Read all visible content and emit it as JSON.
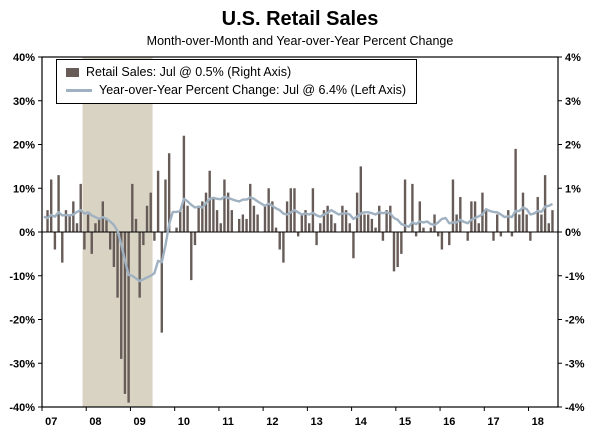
{
  "title": "U.S. Retail Sales",
  "subtitle": "Month-over-Month and Year-over-Year Percent Change",
  "legend": {
    "bars_label": "Retail Sales: Jul @ 0.5% (Right Axis)",
    "line_label": "Year-over-Year Percent Change: Jul @ 6.4% (Left Axis)"
  },
  "colors": {
    "bar": "#675c58",
    "line": "#a0b1c1",
    "recession_band": "#d9d3c3",
    "axis": "#000000",
    "background": "#ffffff"
  },
  "chart_data": {
    "type": "bar",
    "combo": true,
    "x_start": "2007-01",
    "frequency": "monthly",
    "x_domain_months": 140,
    "x_tick_labels": [
      "07",
      "08",
      "09",
      "10",
      "11",
      "12",
      "13",
      "14",
      "15",
      "16",
      "17",
      "18"
    ],
    "left_axis": {
      "range": [
        -40,
        40
      ],
      "tick_step": 10,
      "tick_format": "percent"
    },
    "right_axis": {
      "range": [
        -4,
        4
      ],
      "tick_step": 1,
      "tick_format": "percent"
    },
    "right_to_left_scale": 10,
    "grid": false,
    "legend_position": "top-left-inside",
    "recession_band": {
      "start": "2007-12",
      "end": "2009-06",
      "start_index": 11,
      "end_index": 29
    },
    "series": [
      {
        "name": "Retail Sales: Jul @ 0.5% (Right Axis)",
        "kind": "bar",
        "axis": "right",
        "latest_label": "Jul @ 0.5%",
        "values": [
          0.0,
          0.5,
          1.2,
          -0.4,
          1.3,
          -0.7,
          0.5,
          0.4,
          0.7,
          0.2,
          1.1,
          -0.4,
          0.4,
          -0.5,
          0.2,
          0.3,
          0.7,
          0.3,
          -0.4,
          -0.8,
          -1.5,
          -2.9,
          -3.7,
          -3.9,
          1.1,
          0.3,
          -1.5,
          -0.3,
          0.6,
          0.9,
          -0.2,
          1.4,
          -2.3,
          1.2,
          1.8,
          0.0,
          0.1,
          0.5,
          2.2,
          0.6,
          -1.1,
          -0.3,
          0.6,
          0.7,
          0.9,
          1.4,
          0.8,
          0.5,
          0.2,
          1.2,
          0.9,
          0.5,
          0.0,
          0.3,
          0.4,
          0.3,
          1.1,
          0.6,
          0.4,
          0.0,
          0.6,
          1.0,
          0.7,
          0.1,
          -0.4,
          -0.7,
          0.7,
          1.0,
          1.0,
          -0.1,
          0.4,
          0.5,
          0.2,
          1.0,
          -0.3,
          0.2,
          0.5,
          0.6,
          0.4,
          0.2,
          0.0,
          0.6,
          0.5,
          0.2,
          -0.6,
          0.9,
          1.5,
          0.4,
          0.4,
          0.3,
          0.1,
          0.6,
          -0.2,
          0.5,
          0.6,
          -0.9,
          -0.8,
          -0.5,
          1.2,
          0.0,
          1.1,
          -0.1,
          0.7,
          0.1,
          0.0,
          0.1,
          0.4,
          -0.1,
          -0.4,
          0.0,
          -0.3,
          1.2,
          0.4,
          0.8,
          0.0,
          -0.2,
          0.7,
          0.7,
          0.2,
          0.9,
          0.5,
          0.0,
          -0.2,
          0.4,
          -0.1,
          0.0,
          0.5,
          -0.1,
          1.9,
          0.4,
          0.9,
          0.4,
          -0.2,
          0.0,
          0.8,
          0.4,
          1.3,
          0.2,
          0.5
        ]
      },
      {
        "name": "Year-over-Year Percent Change: Jul @ 6.4% (Left Axis)",
        "kind": "line",
        "axis": "left",
        "latest_label": "Jul @ 6.4%",
        "values": [
          3.5,
          3.2,
          3.9,
          3.5,
          4.5,
          3.8,
          3.9,
          3.8,
          4.0,
          4.6,
          5.0,
          4.2,
          4.5,
          3.8,
          3.4,
          3.0,
          3.4,
          3.0,
          2.4,
          1.6,
          0.2,
          -2.8,
          -6.5,
          -9.8,
          -10.0,
          -10.6,
          -11.2,
          -10.8,
          -10.4,
          -10.0,
          -9.4,
          -6.6,
          -6.9,
          -3.0,
          1.8,
          4.6,
          4.6,
          4.8,
          7.6,
          7.0,
          6.2,
          5.6,
          5.8,
          5.6,
          6.6,
          7.6,
          7.8,
          7.6,
          7.5,
          8.0,
          7.8,
          7.5,
          7.2,
          7.0,
          7.4,
          7.4,
          7.9,
          7.6,
          7.0,
          6.5,
          6.0,
          6.5,
          6.0,
          5.4,
          5.0,
          4.2,
          4.0,
          4.5,
          5.0,
          4.5,
          4.0,
          4.2,
          4.0,
          4.4,
          3.8,
          3.5,
          4.0,
          4.4,
          5.0,
          4.5,
          4.0,
          4.2,
          4.3,
          4.0,
          3.0,
          3.5,
          4.2,
          4.5,
          4.5,
          4.3,
          4.0,
          4.5,
          4.3,
          4.5,
          4.2,
          3.2,
          2.8,
          1.8,
          1.5,
          1.2,
          2.2,
          1.8,
          2.4,
          2.2,
          2.4,
          1.8,
          1.6,
          2.2,
          3.0,
          3.2,
          2.0,
          2.2,
          2.2,
          2.8,
          2.3,
          2.0,
          2.8,
          3.2,
          3.6,
          4.0,
          5.2,
          4.8,
          4.6,
          4.5,
          4.0,
          3.4,
          3.6,
          3.4,
          4.8,
          4.8,
          5.6,
          5.2,
          4.0,
          4.2,
          4.8,
          4.6,
          5.8,
          6.0,
          6.4
        ]
      }
    ]
  }
}
